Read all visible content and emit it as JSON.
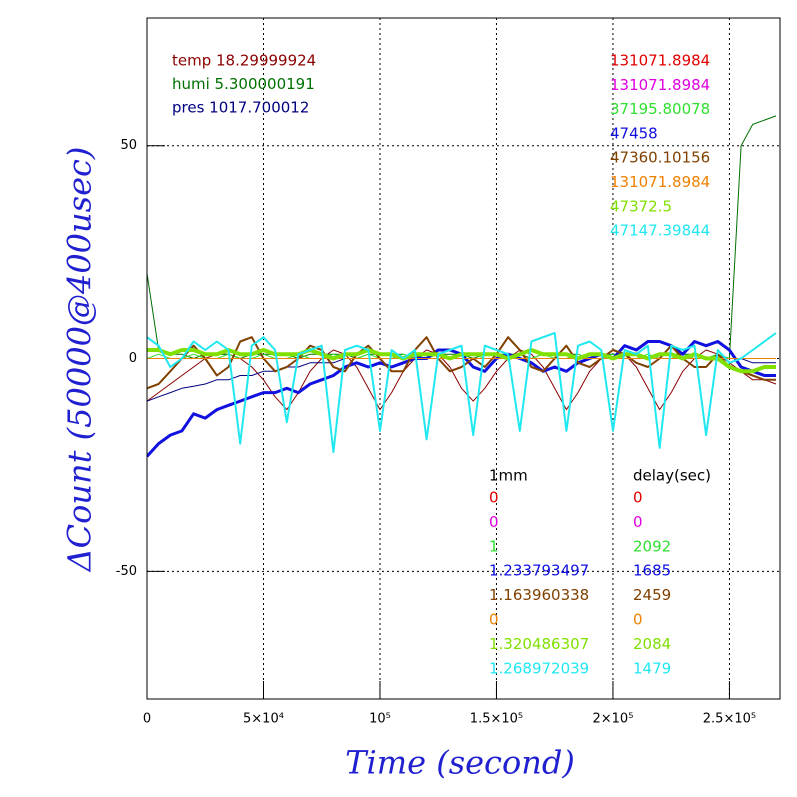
{
  "chart_data": {
    "type": "line",
    "xlabel": "Time (second)",
    "ylabel": "ΔCount (50000@400usec)",
    "xlim": [
      0,
      271700
    ],
    "ylim": [
      -80,
      80
    ],
    "xticks": [
      0,
      {
        "value": 50000,
        "label": "5×10⁴"
      },
      {
        "value": 100000,
        "label": "10⁵"
      },
      {
        "value": 150000,
        "label": "1.5×10⁵"
      },
      {
        "value": 200000,
        "label": "2×10⁵"
      },
      {
        "value": 250000,
        "label": "2.5×10⁵"
      }
    ],
    "yticks": [
      -50,
      0,
      50
    ],
    "grid": true,
    "table_headers": [
      "1mm",
      "delay(sec)"
    ],
    "x": [
      0,
      5000,
      10000,
      15000,
      20000,
      25000,
      30000,
      35000,
      40000,
      45000,
      50000,
      55000,
      60000,
      65000,
      70000,
      75000,
      80000,
      85000,
      90000,
      95000,
      100000,
      105000,
      110000,
      115000,
      120000,
      125000,
      130000,
      135000,
      140000,
      145000,
      150000,
      155000,
      160000,
      165000,
      170000,
      175000,
      180000,
      185000,
      190000,
      195000,
      200000,
      205000,
      210000,
      215000,
      220000,
      225000,
      230000,
      235000,
      240000,
      245000,
      250000,
      255000,
      260000,
      265000,
      270000
    ],
    "series": [
      {
        "name": "temp 18.29999924",
        "color": "#8b0000",
        "width": 1,
        "values": [
          -10,
          -8,
          -6,
          -4,
          -2,
          0,
          1,
          1,
          0,
          -2,
          -5,
          -9,
          -12,
          -8,
          -3,
          0,
          2,
          1,
          -2,
          -7,
          -12,
          -8,
          -3,
          0,
          2,
          1,
          -2,
          -7,
          -10,
          -7,
          -3,
          0,
          2,
          1,
          -2,
          -7,
          -12,
          -8,
          -3,
          0,
          2,
          1,
          -2,
          -7,
          -12,
          -8,
          -3,
          0,
          2,
          1,
          -1,
          -3,
          -5,
          -5,
          -6
        ]
      },
      {
        "name": "humi 5.300000191",
        "color": "#007000",
        "width": 1,
        "values": [
          20,
          2,
          1,
          1,
          0,
          1,
          1,
          1,
          0,
          1,
          1,
          1,
          1,
          0,
          1,
          1,
          1,
          1,
          0,
          1,
          1,
          1,
          1,
          0,
          1,
          1,
          1,
          1,
          0,
          1,
          1,
          1,
          1,
          0,
          1,
          1,
          1,
          1,
          0,
          1,
          1,
          1,
          1,
          0,
          1,
          1,
          1,
          1,
          0,
          1,
          0,
          50,
          55,
          56,
          57
        ]
      },
      {
        "name": "pres 1017.700012",
        "color": "#000080",
        "width": 1,
        "values": [
          -10,
          -9,
          -8,
          -7,
          -6.5,
          -6,
          -5,
          -5,
          -4,
          -4,
          -3,
          -3,
          -2,
          -2,
          -1,
          -1,
          -1,
          0,
          0,
          0,
          0,
          0,
          0,
          0,
          0,
          0,
          0,
          0,
          0,
          0,
          0,
          0,
          0,
          0,
          0,
          0,
          0,
          0,
          0,
          0,
          0,
          0,
          0,
          0,
          0,
          0,
          0,
          0,
          0,
          0,
          0,
          0,
          -1,
          -1,
          -1
        ]
      },
      {
        "name": "131071.8984",
        "color": "#e00000",
        "width": 1,
        "mm": 0,
        "delay": 0,
        "values": [
          0,
          0,
          0,
          0,
          0,
          0,
          0,
          0,
          0,
          0,
          0,
          0,
          0,
          0,
          0,
          0,
          0,
          0,
          0,
          0,
          0,
          0,
          0,
          0,
          0,
          0,
          0,
          0,
          0,
          0,
          0,
          0,
          0,
          0,
          0,
          0,
          0,
          0,
          0,
          0,
          0,
          0,
          0,
          0,
          0,
          0,
          0,
          0,
          0,
          0,
          0,
          0,
          0,
          0,
          0
        ]
      },
      {
        "name": "131071.8984",
        "color": "#e000e0",
        "width": 1,
        "mm": 0,
        "delay": 0,
        "values": [
          0,
          0,
          0,
          0,
          0,
          0,
          0,
          0,
          0,
          0,
          0,
          0,
          0,
          0,
          0,
          0,
          0,
          0,
          0,
          0,
          0,
          0,
          0,
          0,
          0,
          0,
          0,
          0,
          0,
          0,
          0,
          0,
          0,
          0,
          0,
          0,
          0,
          0,
          0,
          0,
          0,
          0,
          0,
          0,
          0,
          0,
          0,
          0,
          0,
          0,
          0,
          0,
          0,
          0,
          0
        ]
      },
      {
        "name": "37195.80078",
        "color": "#30e030",
        "width": 1,
        "mm": 1,
        "delay": 2092,
        "values": [
          0,
          1,
          0,
          0,
          1,
          0,
          0,
          1,
          0,
          0,
          1,
          0,
          0,
          1,
          0,
          0,
          1,
          0,
          0,
          1,
          0,
          0,
          1,
          0,
          0,
          1,
          0,
          0,
          1,
          0,
          0,
          1,
          0,
          0,
          1,
          0,
          0,
          1,
          0,
          0,
          1,
          0,
          0,
          1,
          0,
          0,
          1,
          0,
          0,
          1,
          0,
          0,
          0,
          0,
          0
        ]
      },
      {
        "name": "47458",
        "color": "#1010e0",
        "width": 3,
        "mm": 1.233793497,
        "delay": 1685,
        "values": [
          -23,
          -20,
          -18,
          -17,
          -13,
          -14,
          -12,
          -11,
          -10,
          -9,
          -8,
          -8,
          -7,
          -8,
          -6,
          -5,
          -4,
          -2,
          -1,
          -2,
          -1,
          -2,
          -1,
          0,
          0,
          2,
          2,
          1,
          -2,
          -3,
          0,
          1,
          0,
          -1,
          -3,
          -2,
          -3,
          -1,
          0,
          1,
          0,
          3,
          2,
          4,
          4,
          3,
          1,
          4,
          3,
          4,
          2,
          -2,
          -3,
          -4,
          -4
        ]
      },
      {
        "name": "47360.10156",
        "color": "#804000",
        "width": 2,
        "mm": 1.163960338,
        "delay": 2459,
        "values": [
          -7,
          -6,
          -3,
          0,
          3,
          0,
          -4,
          -2,
          4,
          5,
          0,
          -3,
          -2,
          0,
          3,
          2,
          -2,
          -3,
          1,
          3,
          0,
          -3,
          -3,
          2,
          5,
          0,
          -3,
          -2,
          0,
          -2,
          1,
          5,
          2,
          -2,
          -3,
          0,
          3,
          -1,
          -2,
          0,
          2,
          1,
          -1,
          -2,
          0,
          3,
          0,
          -2,
          -2,
          1,
          -2,
          -3,
          -4,
          -5,
          -5
        ]
      },
      {
        "name": "131071.8984",
        "color": "#f08000",
        "width": 1,
        "mm": 0,
        "delay": 0,
        "values": [
          0,
          0,
          0,
          0,
          0,
          0,
          0,
          0,
          0,
          0,
          0,
          0,
          0,
          0,
          0,
          0,
          0,
          0,
          0,
          0,
          0,
          0,
          0,
          0,
          0,
          0,
          0,
          0,
          0,
          0,
          0,
          0,
          0,
          0,
          0,
          0,
          0,
          0,
          0,
          0,
          0,
          0,
          0,
          0,
          0,
          0,
          0,
          0,
          0,
          0,
          0,
          0,
          0,
          0,
          0
        ]
      },
      {
        "name": "47372.5",
        "color": "#80e000",
        "width": 4,
        "mm": 1.320486307,
        "delay": 2084,
        "values": [
          2,
          2,
          1,
          2,
          2,
          1,
          1,
          2,
          1,
          1,
          2,
          1,
          1,
          1,
          2,
          1,
          0,
          1,
          1,
          2,
          1,
          1,
          0,
          1,
          1,
          1,
          0,
          1,
          1,
          1,
          1,
          0,
          1,
          2,
          1,
          1,
          1,
          0,
          1,
          1,
          0,
          1,
          1,
          0,
          1,
          1,
          0,
          1,
          0,
          0,
          -2,
          -3,
          -3,
          -2,
          -2
        ]
      },
      {
        "name": "47147.39844",
        "color": "#20e8f0",
        "width": 2,
        "mm": 1.268972039,
        "delay": 1479,
        "values": [
          5,
          3,
          -2,
          0,
          4,
          2,
          4,
          2,
          -20,
          3,
          5,
          2,
          -15,
          1,
          2,
          3,
          -22,
          2,
          3,
          2,
          -17,
          2,
          0,
          2,
          -19,
          1,
          2,
          3,
          -18,
          3,
          2,
          1,
          -17,
          4,
          5,
          6,
          -17,
          3,
          4,
          2,
          -17,
          2,
          1,
          3,
          -21,
          3,
          2,
          3,
          -18,
          2,
          -1,
          0,
          2,
          4,
          6
        ]
      }
    ]
  }
}
